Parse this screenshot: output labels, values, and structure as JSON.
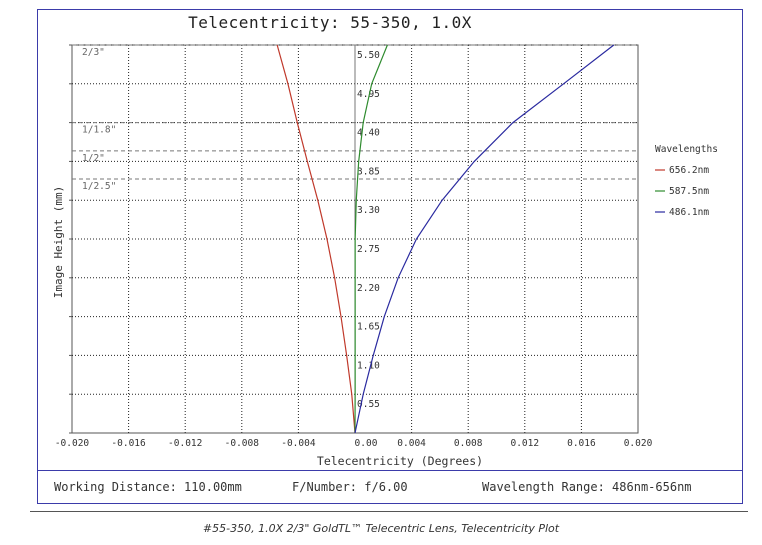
{
  "chart_data": {
    "type": "line",
    "title": "Telecentricity: 55-350, 1.0X",
    "xlabel": "Telecentricity (Degrees)",
    "ylabel": "Image Height (mm)",
    "xlim": [
      -0.02,
      0.02
    ],
    "ylim": [
      0,
      5.5
    ],
    "x_ticks": [
      "-0.020",
      "-0.016",
      "-0.012",
      "-0.008",
      "-0.004",
      "0.00",
      "0.004",
      "0.008",
      "0.012",
      "0.016",
      "0.020"
    ],
    "y_ticks": [
      "0.55",
      "1.10",
      "1.65",
      "2.20",
      "2.75",
      "3.30",
      "3.85",
      "4.40",
      "4.95",
      "5.50"
    ],
    "grid": true,
    "sensor_markers": [
      {
        "label": "2/3\"",
        "height": 5.5
      },
      {
        "label": "1/1.8\"",
        "height": 4.4
      },
      {
        "label": "1/2\"",
        "height": 4.0
      },
      {
        "label": "1/2.5\"",
        "height": 3.6
      }
    ],
    "legend": {
      "title": "Wavelengths",
      "position": "right"
    },
    "series": [
      {
        "name": "656.2nm",
        "color": "#c0392b",
        "points": [
          [
            0.0,
            0.0
          ],
          [
            -0.00023,
            0.55
          ],
          [
            -0.00059,
            1.1
          ],
          [
            -0.00099,
            1.65
          ],
          [
            -0.00144,
            2.2
          ],
          [
            -0.00198,
            2.75
          ],
          [
            -0.00263,
            3.3
          ],
          [
            -0.00337,
            3.85
          ],
          [
            -0.00408,
            4.4
          ],
          [
            -0.00474,
            4.95
          ],
          [
            -0.0055,
            5.5
          ]
        ]
      },
      {
        "name": "587.5nm",
        "color": "#2e8b2e",
        "points": [
          [
            0.0,
            0.0
          ],
          [
            1e-05,
            0.55
          ],
          [
            1e-05,
            1.1
          ],
          [
            1e-05,
            1.65
          ],
          [
            1e-05,
            2.2
          ],
          [
            1e-05,
            2.75
          ],
          [
            9e-05,
            3.3
          ],
          [
            0.00026,
            3.85
          ],
          [
            0.00058,
            4.4
          ],
          [
            0.00118,
            4.95
          ],
          [
            0.00229,
            5.5
          ]
        ]
      },
      {
        "name": "486.1nm",
        "color": "#2a2aa0",
        "points": [
          [
            0.0,
            0.0
          ],
          [
            0.00058,
            0.55
          ],
          [
            0.00129,
            1.1
          ],
          [
            0.00207,
            1.65
          ],
          [
            0.00305,
            2.2
          ],
          [
            0.00434,
            2.75
          ],
          [
            0.00616,
            3.3
          ],
          [
            0.00843,
            3.85
          ],
          [
            0.01116,
            4.4
          ],
          [
            0.01474,
            4.95
          ],
          [
            0.01829,
            5.5
          ]
        ]
      }
    ]
  },
  "footer": {
    "working_distance": "Working Distance: 110.00mm",
    "f_number": "F/Number: f/6.00",
    "wavelength_range": "Wavelength Range: 486nm-656nm"
  },
  "caption": "#55-350, 1.0X 2/3\" GoldTL™ Telecentric Lens, Telecentricity Plot"
}
